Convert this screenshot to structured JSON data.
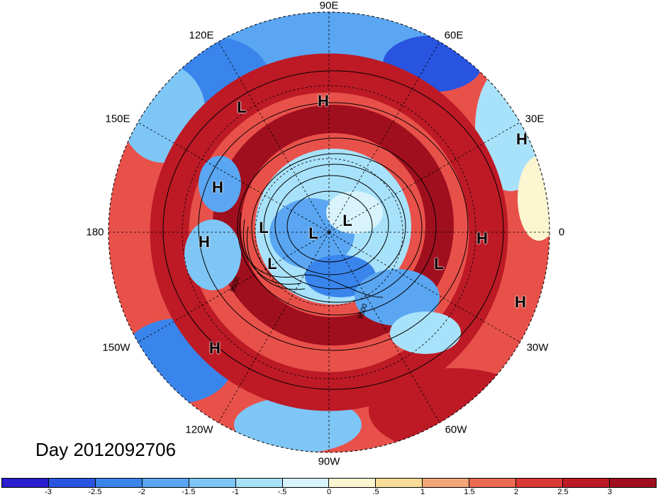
{
  "map": {
    "projection": "north-polar-stereographic",
    "longitude_labels": [
      "90E",
      "60E",
      "30E",
      "0",
      "30W",
      "60W",
      "90W",
      "120W",
      "150W",
      "180",
      "150E",
      "120E"
    ],
    "pressure_centers": [
      {
        "label": "H"
      },
      {
        "label": "L"
      },
      {
        "label": "H"
      },
      {
        "label": "H"
      },
      {
        "label": "L"
      },
      {
        "label": "L"
      },
      {
        "label": "L"
      },
      {
        "label": "H"
      },
      {
        "label": "H"
      },
      {
        "label": "L"
      },
      {
        "label": "L"
      },
      {
        "label": "H"
      },
      {
        "label": "H"
      }
    ],
    "contour_labels": [
      "9500",
      "9500"
    ]
  },
  "title": {
    "day_label": "Day 2012092706"
  },
  "colorbar": {
    "tick_labels": [
      "-3",
      "-2.5",
      "-2",
      "-1.5",
      "-1",
      "-.5",
      "0",
      ".5",
      "1",
      "1.5",
      "2",
      "2.5",
      "3"
    ],
    "colors": [
      "#2a1ccf",
      "#2854e0",
      "#3a85ec",
      "#5aa6f2",
      "#7ec6f6",
      "#a8e2fa",
      "#d8f3fb",
      "#fbf6d0",
      "#f8dc98",
      "#f4a678",
      "#ea6a52",
      "#da3a36",
      "#bd1a26",
      "#a00f1e"
    ]
  }
}
